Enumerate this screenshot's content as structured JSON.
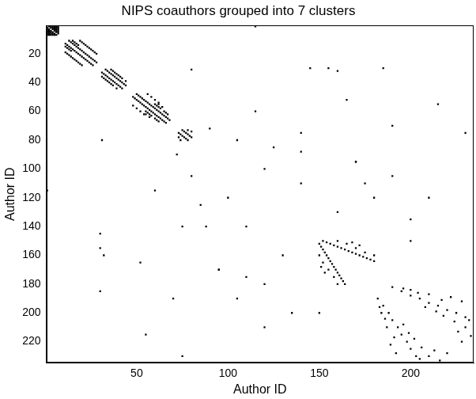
{
  "chart_data": {
    "type": "scatter",
    "title": "NIPS coauthors grouped into 7 clusters",
    "x_label": "Author ID",
    "y_label": "Author ID",
    "xlim": [
      0.5,
      234.5
    ],
    "ylim": [
      234.5,
      0.5
    ],
    "xticks": [
      50,
      100,
      150,
      200
    ],
    "yticks": [
      20,
      40,
      60,
      80,
      100,
      120,
      140,
      160,
      180,
      200,
      220
    ],
    "grid": false,
    "color": "#000000",
    "marker": "square",
    "x": [
      1,
      2,
      1,
      3,
      1,
      4,
      1,
      5,
      1,
      6,
      1,
      7,
      2,
      3,
      2,
      4,
      2,
      5,
      2,
      6,
      2,
      7,
      3,
      4,
      3,
      5,
      3,
      6,
      3,
      7,
      4,
      5,
      4,
      6,
      4,
      7,
      5,
      6,
      5,
      7,
      6,
      7,
      11,
      13,
      11,
      15,
      12,
      14,
      12,
      16,
      13,
      15,
      13,
      17,
      14,
      16,
      14,
      18,
      15,
      17,
      16,
      18,
      17,
      19,
      18,
      20,
      19,
      21,
      20,
      22,
      21,
      23,
      22,
      24,
      23,
      25,
      24,
      26,
      25,
      27,
      26,
      28,
      11,
      19,
      13,
      21,
      15,
      23,
      17,
      25,
      19,
      27,
      12,
      20,
      14,
      22,
      16,
      24,
      18,
      26,
      20,
      28,
      31,
      33,
      32,
      34,
      33,
      35,
      34,
      36,
      35,
      37,
      36,
      38,
      37,
      39,
      38,
      40,
      39,
      41,
      40,
      42,
      41,
      43,
      42,
      44,
      31,
      36,
      33,
      38,
      35,
      40,
      37,
      42,
      39,
      44,
      32,
      37,
      34,
      39,
      36,
      41,
      48,
      50,
      49,
      51,
      50,
      52,
      51,
      53,
      52,
      54,
      53,
      55,
      54,
      56,
      55,
      57,
      56,
      58,
      57,
      59,
      58,
      60,
      59,
      61,
      60,
      62,
      61,
      63,
      62,
      64,
      63,
      65,
      64,
      66,
      65,
      67,
      66,
      68,
      55,
      60,
      56,
      61,
      57,
      62,
      58,
      63,
      55,
      62,
      57,
      64,
      60,
      65,
      61,
      66,
      62,
      67,
      48,
      56,
      50,
      58,
      52,
      60,
      54,
      62,
      73,
      75,
      74,
      76,
      75,
      77,
      76,
      78,
      77,
      79,
      78,
      80,
      73,
      78,
      74,
      80,
      150,
      152,
      151,
      154,
      152,
      156,
      153,
      158,
      154,
      160,
      155,
      162,
      156,
      164,
      157,
      166,
      158,
      168,
      159,
      170,
      160,
      172,
      161,
      174,
      162,
      176,
      163,
      178,
      164,
      180,
      150,
      160,
      152,
      165,
      155,
      170,
      158,
      175,
      160,
      180,
      151,
      168,
      153,
      172,
      182,
      190,
      185,
      195,
      188,
      200,
      190,
      205,
      193,
      210,
      195,
      215,
      198,
      220,
      200,
      225,
      203,
      230,
      205,
      232,
      184,
      200,
      187,
      210,
      189,
      222,
      192,
      228,
      196,
      208,
      199,
      214,
      202,
      218,
      206,
      224,
      210,
      230,
      213,
      226,
      216,
      233,
      220,
      228,
      183,
      196,
      186,
      204,
      191,
      217,
      80,
      31,
      80,
      105,
      90,
      72,
      100,
      120,
      110,
      140,
      125,
      85,
      130,
      160,
      145,
      30,
      155,
      30,
      160,
      32,
      165,
      52,
      170,
      95,
      175,
      110,
      185,
      30,
      190,
      70,
      200,
      150,
      210,
      120,
      215,
      55,
      120,
      180,
      135,
      200,
      140,
      75,
      95,
      170,
      105,
      190,
      115,
      60,
      88,
      140,
      75,
      230,
      115,
      1
    ],
    "values": [
      2,
      1,
      3,
      1,
      4,
      1,
      5,
      1,
      6,
      1,
      7,
      1,
      3,
      2,
      4,
      2,
      5,
      2,
      6,
      2,
      7,
      2,
      4,
      3,
      5,
      3,
      6,
      3,
      7,
      3,
      5,
      4,
      6,
      4,
      7,
      4,
      6,
      5,
      7,
      5,
      7,
      6,
      13,
      11,
      15,
      11,
      14,
      12,
      16,
      12,
      15,
      13,
      17,
      13,
      16,
      14,
      18,
      14,
      17,
      15,
      18,
      16,
      19,
      17,
      20,
      18,
      21,
      19,
      22,
      20,
      23,
      21,
      24,
      22,
      25,
      23,
      26,
      24,
      27,
      25,
      28,
      26,
      19,
      11,
      21,
      13,
      23,
      15,
      25,
      17,
      27,
      19,
      20,
      12,
      22,
      14,
      24,
      16,
      26,
      18,
      28,
      20,
      33,
      31,
      34,
      32,
      35,
      33,
      36,
      34,
      37,
      35,
      38,
      36,
      39,
      37,
      40,
      38,
      41,
      39,
      42,
      40,
      43,
      41,
      44,
      42,
      36,
      31,
      38,
      33,
      40,
      35,
      42,
      37,
      44,
      39,
      37,
      32,
      39,
      34,
      41,
      36,
      50,
      48,
      51,
      49,
      52,
      50,
      53,
      51,
      54,
      52,
      55,
      53,
      56,
      54,
      57,
      55,
      58,
      56,
      59,
      57,
      60,
      58,
      61,
      59,
      62,
      60,
      63,
      61,
      64,
      62,
      65,
      63,
      66,
      64,
      67,
      65,
      68,
      66,
      60,
      55,
      61,
      56,
      62,
      57,
      63,
      58,
      62,
      55,
      64,
      57,
      65,
      60,
      66,
      61,
      67,
      62,
      56,
      48,
      58,
      50,
      60,
      52,
      62,
      54,
      75,
      73,
      76,
      74,
      77,
      75,
      78,
      76,
      79,
      77,
      80,
      78,
      78,
      73,
      80,
      74,
      152,
      150,
      154,
      151,
      156,
      152,
      158,
      153,
      160,
      154,
      162,
      155,
      164,
      156,
      166,
      157,
      168,
      158,
      170,
      159,
      172,
      160,
      174,
      161,
      176,
      162,
      178,
      163,
      180,
      164,
      160,
      150,
      165,
      152,
      170,
      155,
      175,
      158,
      180,
      160,
      168,
      151,
      172,
      153,
      190,
      182,
      195,
      185,
      200,
      188,
      205,
      190,
      210,
      193,
      215,
      195,
      220,
      198,
      225,
      200,
      230,
      203,
      232,
      205,
      200,
      184,
      210,
      187,
      222,
      189,
      228,
      192,
      208,
      196,
      214,
      199,
      218,
      202,
      224,
      206,
      230,
      210,
      226,
      213,
      233,
      216,
      228,
      220,
      196,
      183,
      204,
      186,
      217,
      191,
      31,
      80,
      105,
      80,
      72,
      90,
      120,
      100,
      140,
      110,
      85,
      125,
      160,
      130,
      30,
      145,
      30,
      155,
      32,
      160,
      52,
      165,
      95,
      170,
      110,
      175,
      30,
      185,
      70,
      190,
      150,
      200,
      120,
      210,
      55,
      215,
      180,
      120,
      200,
      135,
      75,
      140,
      170,
      95,
      190,
      105,
      60,
      115,
      140,
      88,
      230,
      75,
      1,
      115
    ]
  }
}
